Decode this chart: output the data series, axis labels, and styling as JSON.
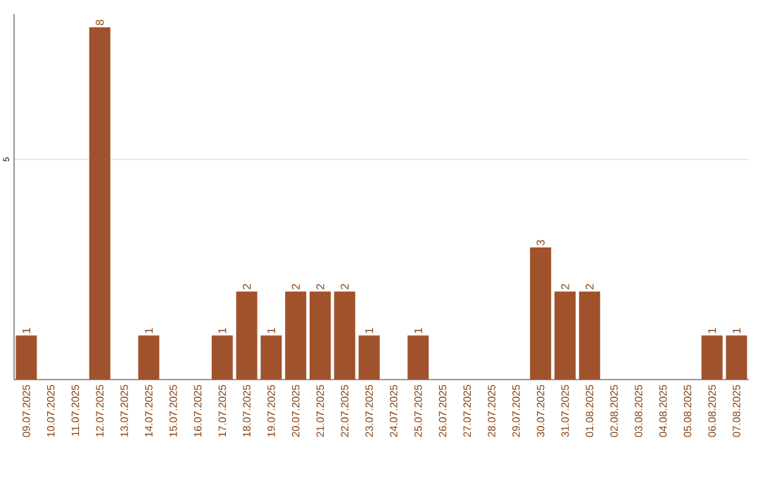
{
  "chart_data": {
    "type": "bar",
    "categories": [
      "09.07.2025",
      "10.07.2025",
      "11.07.2025",
      "12.07.2025",
      "13.07.2025",
      "14.07.2025",
      "15.07.2025",
      "16.07.2025",
      "17.07.2025",
      "18.07.2025",
      "19.07.2025",
      "20.07.2025",
      "21.07.2025",
      "22.07.2025",
      "23.07.2025",
      "24.07.2025",
      "25.07.2025",
      "26.07.2025",
      "27.07.2025",
      "28.07.2025",
      "29.07.2025",
      "30.07.2025",
      "31.07.2025",
      "01.08.2025",
      "02.08.2025",
      "03.08.2025",
      "04.08.2025",
      "05.08.2025",
      "06.08.2025",
      "07.08.2025"
    ],
    "values": [
      1,
      0,
      0,
      8,
      0,
      1,
      0,
      0,
      1,
      2,
      1,
      2,
      2,
      2,
      1,
      0,
      1,
      0,
      0,
      0,
      0,
      3,
      2,
      2,
      0,
      0,
      0,
      0,
      1,
      1
    ],
    "value_labels": [
      "1",
      null,
      null,
      "8",
      null,
      "1",
      null,
      null,
      "1",
      "2",
      "1",
      "2",
      "2",
      "2",
      "1",
      null,
      "1",
      null,
      null,
      null,
      null,
      "3",
      "2",
      "2",
      null,
      null,
      null,
      null,
      "1",
      "1"
    ],
    "color": "#a0522d",
    "ylim": [
      0,
      8.3
    ],
    "yticks": [
      5
    ],
    "grid": "y"
  }
}
